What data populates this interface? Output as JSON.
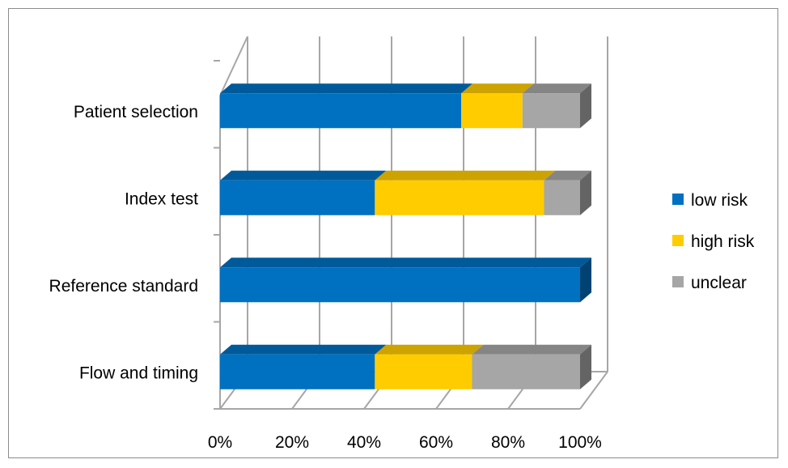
{
  "chart_data": {
    "type": "bar",
    "orientation": "horizontal",
    "stacked": "percent",
    "style": "3d",
    "categories": [
      "Patient selection",
      "Index test",
      "Reference standard",
      "Flow and timing"
    ],
    "series": [
      {
        "name": "low risk",
        "color": "#0070C0",
        "values": [
          67,
          43,
          100,
          43
        ]
      },
      {
        "name": "high risk",
        "color": "#FFCC00",
        "values": [
          17,
          47,
          0,
          27
        ]
      },
      {
        "name": "unclear",
        "color": "#A6A6A6",
        "values": [
          16,
          10,
          0,
          30
        ]
      }
    ],
    "x_ticks": [
      "0%",
      "20%",
      "40%",
      "60%",
      "80%",
      "100%"
    ],
    "xlim": [
      0,
      100
    ],
    "grid": true,
    "legend": "right"
  }
}
